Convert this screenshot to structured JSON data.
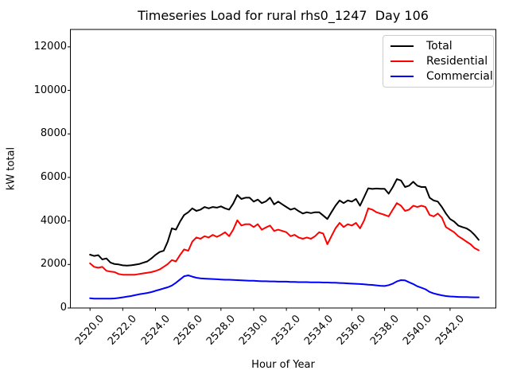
{
  "title": "Timeseries Load for rural rhs0_1247  Day 106",
  "chart_data": {
    "type": "line",
    "title": "Timeseries Load for rural rhs0_1247  Day 106",
    "xlabel": "Hour of Year",
    "ylabel": "kW total",
    "xlim": [
      2518.8,
      2544.8
    ],
    "ylim": [
      0,
      12800
    ],
    "grid": false,
    "legend_position": "upper right",
    "xticks": [
      2520,
      2522,
      2524,
      2526,
      2528,
      2530,
      2532,
      2534,
      2536,
      2538,
      2540,
      2542
    ],
    "xtick_labels": [
      "2520.0",
      "2522.0",
      "2524.0",
      "2526.0",
      "2528.0",
      "2530.0",
      "2532.0",
      "2534.0",
      "2536.0",
      "2538.0",
      "2540.0",
      "2542.0"
    ],
    "yticks": [
      0,
      2000,
      4000,
      6000,
      8000,
      10000,
      12000
    ],
    "ytick_labels": [
      "0",
      "2000",
      "4000",
      "6000",
      "8000",
      "10000",
      "12000"
    ],
    "x": [
      2520.0,
      2520.25,
      2520.5,
      2520.75,
      2521.0,
      2521.25,
      2521.5,
      2521.75,
      2522.0,
      2522.25,
      2522.5,
      2522.75,
      2523.0,
      2523.25,
      2523.5,
      2523.75,
      2524.0,
      2524.25,
      2524.5,
      2524.75,
      2525.0,
      2525.25,
      2525.5,
      2525.75,
      2526.0,
      2526.25,
      2526.5,
      2526.75,
      2527.0,
      2527.25,
      2527.5,
      2527.75,
      2528.0,
      2528.25,
      2528.5,
      2528.75,
      2529.0,
      2529.25,
      2529.5,
      2529.75,
      2530.0,
      2530.25,
      2530.5,
      2530.75,
      2531.0,
      2531.25,
      2531.5,
      2531.75,
      2532.0,
      2532.25,
      2532.5,
      2532.75,
      2533.0,
      2533.25,
      2533.5,
      2533.75,
      2534.0,
      2534.25,
      2534.5,
      2534.75,
      2535.0,
      2535.25,
      2535.5,
      2535.75,
      2536.0,
      2536.25,
      2536.5,
      2536.75,
      2537.0,
      2537.25,
      2537.5,
      2537.75,
      2538.0,
      2538.25,
      2538.5,
      2538.75,
      2539.0,
      2539.25,
      2539.5,
      2539.75,
      2540.0,
      2540.25,
      2540.5,
      2540.75,
      2541.0,
      2541.25,
      2541.5,
      2541.75,
      2542.0,
      2542.25,
      2542.5,
      2542.75,
      2543.0,
      2543.25,
      2543.5,
      2543.75
    ],
    "series": [
      {
        "name": "Total",
        "color": "#000000",
        "values": [
          2450,
          2390,
          2430,
          2230,
          2280,
          2090,
          2020,
          2000,
          1960,
          1950,
          1960,
          1990,
          2020,
          2080,
          2140,
          2280,
          2440,
          2570,
          2630,
          3050,
          3660,
          3600,
          3970,
          4270,
          4400,
          4580,
          4460,
          4520,
          4640,
          4580,
          4640,
          4610,
          4670,
          4580,
          4520,
          4800,
          5190,
          5010,
          5070,
          5070,
          4890,
          4980,
          4820,
          4900,
          5070,
          4760,
          4890,
          4760,
          4640,
          4520,
          4580,
          4450,
          4340,
          4400,
          4360,
          4400,
          4400,
          4250,
          4090,
          4400,
          4700,
          4940,
          4820,
          4940,
          4890,
          5010,
          4700,
          5100,
          5500,
          5470,
          5490,
          5480,
          5480,
          5250,
          5560,
          5920,
          5860,
          5560,
          5620,
          5800,
          5620,
          5560,
          5560,
          5070,
          4940,
          4890,
          4640,
          4340,
          4090,
          3970,
          3790,
          3720,
          3660,
          3540,
          3360,
          3130
        ]
      },
      {
        "name": "Residential",
        "color": "#ff0000",
        "values": [
          2050,
          1890,
          1850,
          1890,
          1710,
          1670,
          1650,
          1560,
          1530,
          1530,
          1530,
          1530,
          1560,
          1590,
          1620,
          1650,
          1700,
          1770,
          1890,
          2020,
          2200,
          2140,
          2440,
          2690,
          2630,
          3050,
          3240,
          3180,
          3300,
          3240,
          3360,
          3270,
          3360,
          3480,
          3300,
          3600,
          4030,
          3790,
          3850,
          3850,
          3720,
          3850,
          3600,
          3700,
          3790,
          3540,
          3600,
          3540,
          3480,
          3300,
          3360,
          3240,
          3180,
          3240,
          3180,
          3300,
          3480,
          3420,
          2930,
          3300,
          3660,
          3910,
          3720,
          3850,
          3790,
          3910,
          3660,
          4030,
          4580,
          4520,
          4400,
          4340,
          4280,
          4210,
          4520,
          4820,
          4700,
          4460,
          4520,
          4700,
          4640,
          4700,
          4640,
          4280,
          4210,
          4340,
          4150,
          3720,
          3600,
          3480,
          3300,
          3180,
          3050,
          2930,
          2750,
          2650
        ]
      },
      {
        "name": "Commercial",
        "color": "#0000ff",
        "values": [
          450,
          430,
          430,
          430,
          430,
          430,
          440,
          460,
          490,
          520,
          550,
          590,
          630,
          660,
          690,
          730,
          790,
          840,
          900,
          950,
          1030,
          1160,
          1310,
          1460,
          1500,
          1440,
          1390,
          1360,
          1350,
          1340,
          1330,
          1320,
          1310,
          1300,
          1300,
          1290,
          1280,
          1270,
          1260,
          1250,
          1250,
          1240,
          1230,
          1230,
          1220,
          1220,
          1210,
          1210,
          1210,
          1200,
          1200,
          1190,
          1190,
          1190,
          1180,
          1180,
          1180,
          1170,
          1170,
          1160,
          1160,
          1150,
          1140,
          1130,
          1120,
          1110,
          1100,
          1090,
          1070,
          1060,
          1040,
          1020,
          1010,
          1050,
          1120,
          1220,
          1280,
          1270,
          1180,
          1100,
          1000,
          930,
          860,
          740,
          670,
          620,
          580,
          550,
          530,
          520,
          510,
          500,
          500,
          495,
          490,
          490
        ]
      }
    ]
  }
}
